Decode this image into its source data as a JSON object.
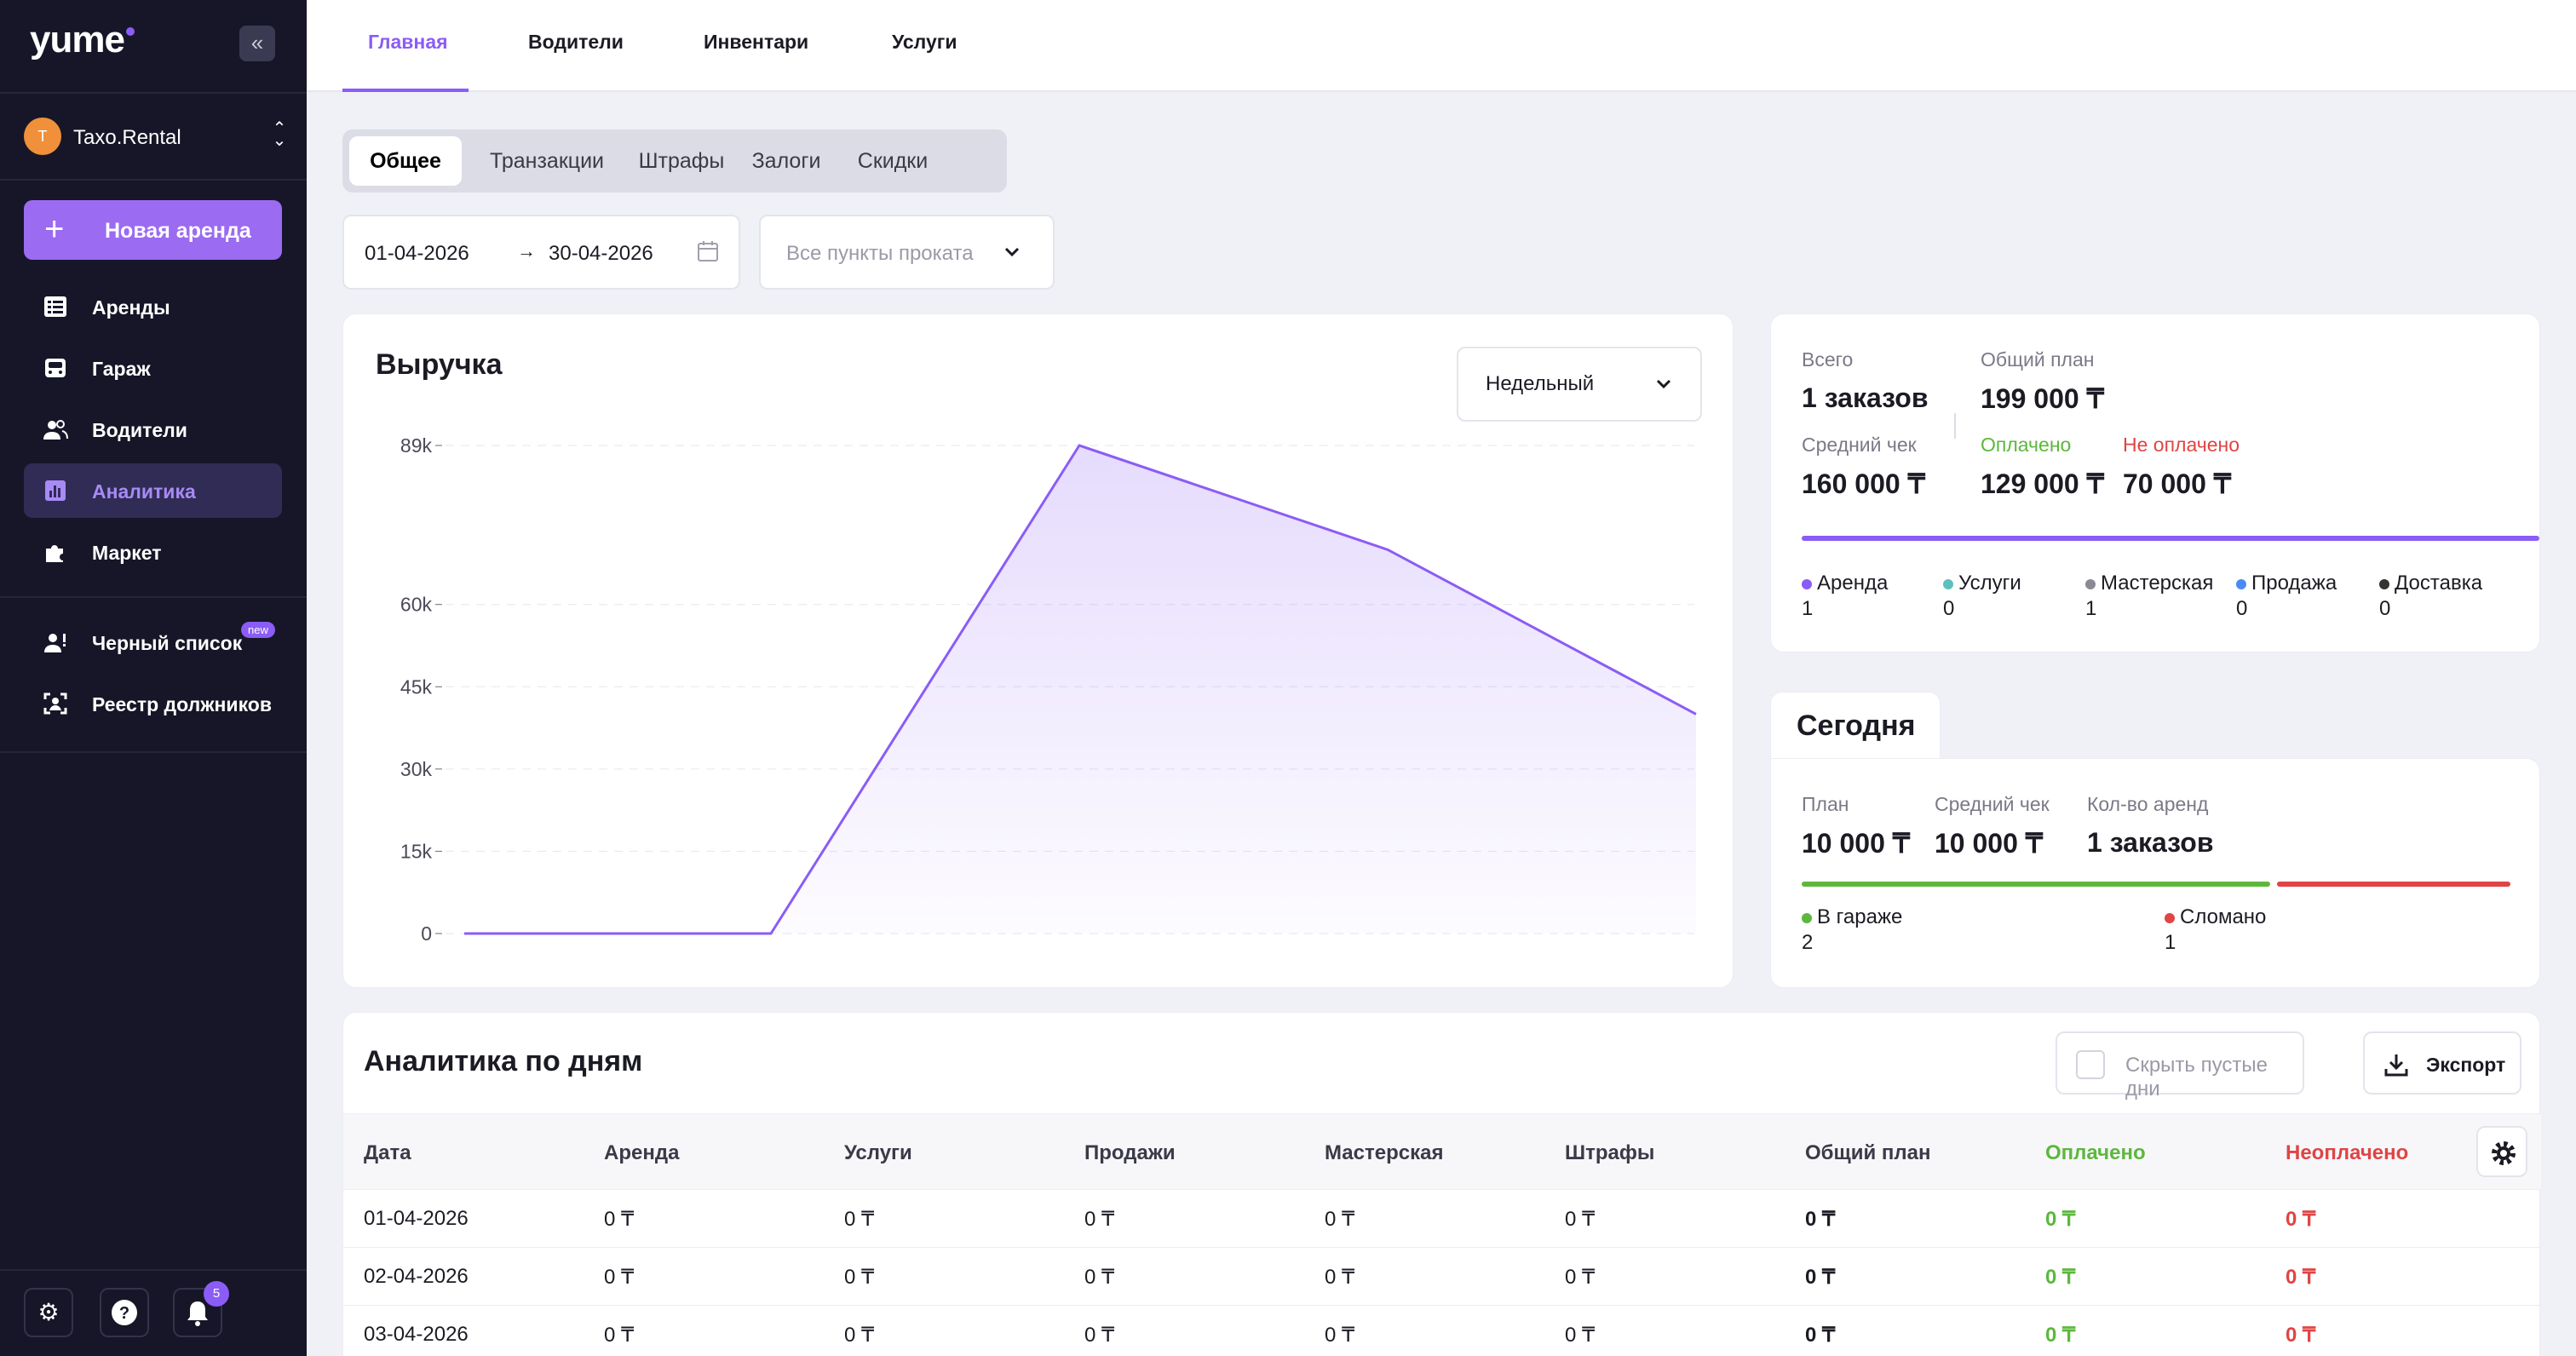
{
  "sidebar": {
    "logo": "yume",
    "org": {
      "initial": "T",
      "name": "Taxo.Rental"
    },
    "new_rental": "Новая аренда",
    "items": [
      {
        "label": "Аренды",
        "icon": "list-icon"
      },
      {
        "label": "Гараж",
        "icon": "car-icon"
      },
      {
        "label": "Водители",
        "icon": "users-icon"
      },
      {
        "label": "Аналитика",
        "icon": "chart-icon",
        "active": true
      },
      {
        "label": "Маркет",
        "icon": "puzzle-icon"
      }
    ],
    "items2": [
      {
        "label": "Черный список",
        "icon": "user-block-icon",
        "badge": "new"
      },
      {
        "label": "Реестр должников",
        "icon": "face-scan-icon"
      }
    ],
    "notifications_count": "5"
  },
  "top_tabs": [
    "Главная",
    "Водители",
    "Инвентари",
    "Услуги"
  ],
  "segments": [
    "Общее",
    "Транзакции",
    "Штрафы",
    "Залоги",
    "Скидки"
  ],
  "filters": {
    "date_from": "01-04-2026",
    "date_to": "30-04-2026",
    "points_placeholder": "Все пункты проката"
  },
  "revenue": {
    "title": "Выручка",
    "period": "Недельный"
  },
  "chart_data": {
    "type": "area",
    "y_ticks": [
      "89k",
      "60k",
      "45k",
      "30k",
      "15k",
      "0"
    ],
    "ylim": [
      0,
      89000
    ],
    "values": [
      0,
      0,
      89000,
      70000,
      40000
    ],
    "color": "#8b5cf6"
  },
  "summary": {
    "total_label": "Всего",
    "total_value": "1 заказов",
    "plan_label": "Общий план",
    "plan_value": "199 000 ₸",
    "avg_label": "Средний чек",
    "avg_value": "160 000 ₸",
    "paid_label": "Оплачено",
    "paid_value": "129 000 ₸",
    "unpaid_label": "Не оплачено",
    "unpaid_value": "70 000 ₸",
    "legend": [
      {
        "label": "Аренда",
        "value": "1",
        "color": "#8b5cf6"
      },
      {
        "label": "Услуги",
        "value": "0",
        "color": "#5bc0be"
      },
      {
        "label": "Мастерская",
        "value": "1",
        "color": "#8a8a94"
      },
      {
        "label": "Продажа",
        "value": "0",
        "color": "#4a8af4"
      },
      {
        "label": "Доставка",
        "value": "0",
        "color": "#333333"
      }
    ]
  },
  "today": {
    "tab": "Сегодня",
    "plan_label": "План",
    "plan_value": "10 000 ₸",
    "avg_label": "Средний чек",
    "avg_value": "10 000 ₸",
    "count_label": "Кол-во аренд",
    "count_value": "1 заказов",
    "garage_label": "В гараже",
    "garage_value": "2",
    "broken_label": "Сломано",
    "broken_value": "1"
  },
  "daily": {
    "title": "Аналитика по дням",
    "hide_empty": "Скрыть пустые дни",
    "export": "Экспорт",
    "columns": [
      "Дата",
      "Аренда",
      "Услуги",
      "Продажи",
      "Мастерская",
      "Штрафы",
      "Общий план",
      "Оплачено",
      "Неоплачено"
    ],
    "rows": [
      [
        "01-04-2026",
        "0 ₸",
        "0 ₸",
        "0 ₸",
        "0 ₸",
        "0 ₸",
        "0 ₸",
        "0 ₸",
        "0 ₸"
      ],
      [
        "02-04-2026",
        "0 ₸",
        "0 ₸",
        "0 ₸",
        "0 ₸",
        "0 ₸",
        "0 ₸",
        "0 ₸",
        "0 ₸"
      ],
      [
        "03-04-2026",
        "0 ₸",
        "0 ₸",
        "0 ₸",
        "0 ₸",
        "0 ₸",
        "0 ₸",
        "0 ₸",
        "0 ₸"
      ]
    ]
  }
}
